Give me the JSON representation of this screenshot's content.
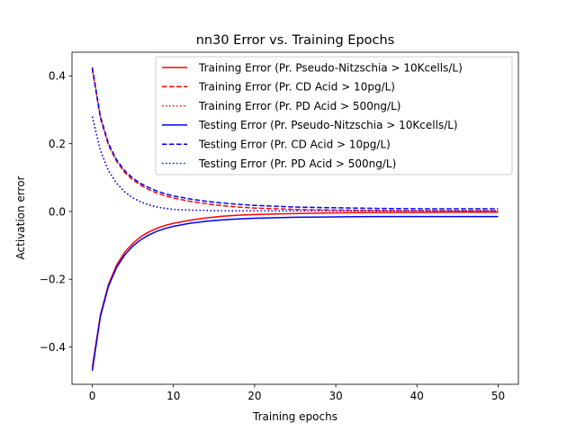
{
  "chart_data": {
    "type": "line",
    "title": "nn30 Error vs. Training Epochs",
    "xlabel": "Training epochs",
    "ylabel": "Activation error",
    "xlim": [
      -2.5,
      52.5
    ],
    "ylim": [
      -0.51,
      0.47
    ],
    "xticks": [
      0,
      10,
      20,
      30,
      40,
      50
    ],
    "xtick_labels": [
      "0",
      "10",
      "20",
      "30",
      "40",
      "50"
    ],
    "yticks": [
      -0.4,
      -0.2,
      0.0,
      0.2,
      0.4
    ],
    "ytick_labels": [
      "−0.4",
      "−0.2",
      "0.0",
      "0.2",
      "0.4"
    ],
    "grid": false,
    "legend_position": "top-right",
    "x": [
      0,
      1,
      2,
      3,
      4,
      5,
      6,
      7,
      8,
      9,
      10,
      12,
      14,
      16,
      18,
      20,
      25,
      30,
      35,
      40,
      45,
      50
    ],
    "series": [
      {
        "name": "Training Error (Pr. Pseudo-Nitzschia > 10Kcells/L)",
        "color": "#ff0000",
        "dash": "solid",
        "values": [
          -0.46,
          -0.305,
          -0.215,
          -0.158,
          -0.12,
          -0.094,
          -0.074,
          -0.06,
          -0.049,
          -0.041,
          -0.035,
          -0.026,
          -0.019,
          -0.014,
          -0.011,
          -0.009,
          -0.006,
          -0.004,
          -0.003,
          -0.003,
          -0.002,
          -0.002
        ]
      },
      {
        "name": "Training Error (Pr. CD Acid > 10pg/L)",
        "color": "#ff0000",
        "dash": "dashed",
        "values": [
          0.42,
          0.275,
          0.195,
          0.148,
          0.115,
          0.093,
          0.077,
          0.064,
          0.054,
          0.046,
          0.04,
          0.03,
          0.023,
          0.017,
          0.013,
          0.01,
          0.006,
          0.004,
          0.003,
          0.002,
          0.002,
          0.002
        ]
      },
      {
        "name": "Training Error (Pr. PD Acid > 500ng/L)",
        "color": "#ff0000",
        "dash": "dotted",
        "values": [
          0.28,
          0.18,
          0.12,
          0.083,
          0.058,
          0.04,
          0.028,
          0.019,
          0.013,
          0.009,
          0.006,
          0.004,
          0.003,
          0.002,
          0.002,
          0.002,
          0.002,
          0.002,
          0.002,
          0.002,
          0.002,
          0.002
        ]
      },
      {
        "name": "Testing Error (Pr. Pseudo-Nitzschia > 10Kcells/L)",
        "color": "#0000ff",
        "dash": "solid",
        "values": [
          -0.47,
          -0.31,
          -0.22,
          -0.165,
          -0.128,
          -0.102,
          -0.083,
          -0.069,
          -0.058,
          -0.05,
          -0.044,
          -0.035,
          -0.029,
          -0.025,
          -0.022,
          -0.02,
          -0.017,
          -0.016,
          -0.015,
          -0.015,
          -0.015,
          -0.015
        ]
      },
      {
        "name": "Testing Error (Pr. CD Acid > 10pg/L)",
        "color": "#0000ff",
        "dash": "dashed",
        "values": [
          0.425,
          0.28,
          0.2,
          0.152,
          0.12,
          0.098,
          0.082,
          0.07,
          0.06,
          0.052,
          0.046,
          0.037,
          0.03,
          0.025,
          0.021,
          0.018,
          0.013,
          0.011,
          0.009,
          0.008,
          0.008,
          0.008
        ]
      },
      {
        "name": "Testing Error (Pr. PD Acid > 500ng/L)",
        "color": "#0000ff",
        "dash": "dotted",
        "values": [
          0.28,
          0.18,
          0.12,
          0.083,
          0.058,
          0.04,
          0.028,
          0.019,
          0.013,
          0.009,
          0.006,
          0.004,
          0.003,
          0.002,
          0.002,
          0.002,
          0.002,
          0.002,
          0.002,
          0.002,
          0.002,
          0.002
        ]
      }
    ]
  }
}
